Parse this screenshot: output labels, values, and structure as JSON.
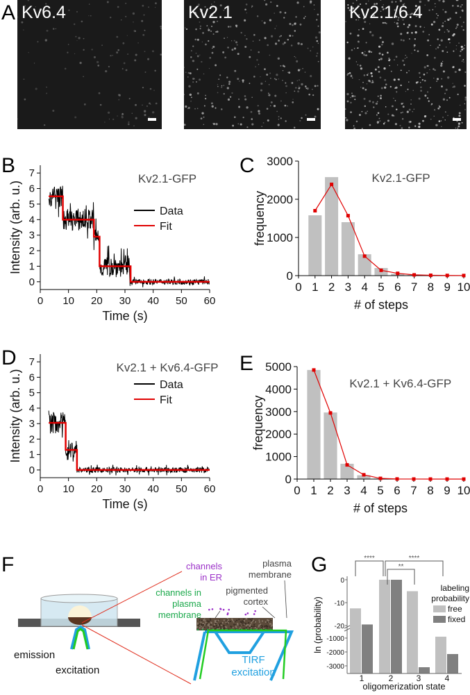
{
  "panel_labels": [
    "A",
    "B",
    "C",
    "D",
    "E",
    "F",
    "G"
  ],
  "panel_a": {
    "images": [
      "Kv6.4",
      "Kv2.1",
      "Kv2.1/6.4"
    ],
    "brightness": [
      0.25,
      0.6,
      0.8
    ]
  },
  "colors": {
    "data": "#000000",
    "fit": "#e00000",
    "bar": "#c0c0c0",
    "bar_dark": "#808080",
    "er": "#9b30c8",
    "pm": "#1aa84a",
    "tirf": "#20a0e0"
  },
  "chart_data": [
    {
      "id": "B",
      "type": "line",
      "title": "Kv2.1-GFP",
      "xlabel": "Time (s)",
      "ylabel": "Intensity (arb. u.)",
      "xlim": [
        0,
        60
      ],
      "ylim": [
        -0.5,
        7.5
      ],
      "xticks": [
        "0",
        "10",
        "20",
        "30",
        "40",
        "50",
        "60"
      ],
      "yticks": [
        "0",
        "1",
        "2",
        "3",
        "4",
        "5",
        "6",
        "7"
      ],
      "legend": [
        "Data",
        "Fit"
      ],
      "fit_steps": [
        [
          3,
          8,
          5.5
        ],
        [
          8,
          19,
          4
        ],
        [
          19,
          21,
          2.9
        ],
        [
          21,
          32,
          1
        ],
        [
          32,
          60,
          0
        ]
      ]
    },
    {
      "id": "C",
      "type": "bar",
      "title": "Kv2.1-GFP",
      "xlabel": "# of steps",
      "ylabel": "frequency",
      "ylim": [
        0,
        3000
      ],
      "xticks": [
        "0",
        "1",
        "2",
        "3",
        "4",
        "5",
        "6",
        "7",
        "8",
        "9",
        "10"
      ],
      "yticks": [
        "0",
        "1000",
        "2000",
        "3000"
      ],
      "categories": [
        1,
        2,
        3,
        4,
        5,
        6,
        7,
        8,
        9,
        10
      ],
      "values": [
        1580,
        2580,
        1400,
        560,
        200,
        50,
        20,
        10,
        5,
        0
      ],
      "fit": [
        1700,
        2390,
        1570,
        510,
        140,
        60,
        20,
        10,
        5,
        3
      ]
    },
    {
      "id": "D",
      "type": "line",
      "title": "Kv2.1 + Kv6.4-GFP",
      "xlabel": "Time (s)",
      "ylabel": "Intensity (arb. u.)",
      "xlim": [
        0,
        60
      ],
      "ylim": [
        -0.5,
        7.5
      ],
      "xticks": [
        "0",
        "10",
        "20",
        "30",
        "40",
        "50",
        "60"
      ],
      "yticks": [
        "0",
        "1",
        "2",
        "3",
        "4",
        "5",
        "6",
        "7"
      ],
      "legend": [
        "Data",
        "Fit"
      ],
      "fit_steps": [
        [
          3,
          9,
          3.05
        ],
        [
          9,
          13,
          1.3
        ],
        [
          13,
          60,
          0
        ]
      ]
    },
    {
      "id": "E",
      "type": "bar",
      "title": "Kv2.1 + Kv6.4-GFP",
      "xlabel": "# of steps",
      "ylabel": "frequency",
      "ylim": [
        0,
        5000
      ],
      "xticks": [
        "0",
        "1",
        "2",
        "3",
        "4",
        "5",
        "6",
        "7",
        "8",
        "9",
        "10"
      ],
      "yticks": [
        "0",
        "1000",
        "2000",
        "3000",
        "4000",
        "5000"
      ],
      "categories": [
        1,
        2,
        3,
        4,
        5,
        6,
        7,
        8,
        9,
        10
      ],
      "values": [
        4850,
        2960,
        680,
        170,
        30,
        10,
        0,
        0,
        0,
        0
      ],
      "fit": [
        4850,
        2940,
        630,
        190,
        30,
        5,
        2,
        1,
        1,
        0
      ]
    },
    {
      "id": "G",
      "type": "bar",
      "xlabel": "oligomerization state",
      "ylabel": "ln (probability)",
      "yticks": [
        "0",
        "-10",
        "-20",
        "-1000",
        "-2000",
        "-3000"
      ],
      "categories": [
        "1",
        "2",
        "3",
        "4"
      ],
      "legend_title": [
        "labeling",
        "probability"
      ],
      "series": [
        {
          "name": "free",
          "values": [
            -12.5,
            0,
            -5,
            -900
          ]
        },
        {
          "name": "fixed",
          "values": [
            -21.5,
            0,
            -3100,
            -2150
          ]
        }
      ],
      "significance": [
        {
          "from": "1",
          "to": "2",
          "label": "****"
        },
        {
          "from": "2",
          "to": "3",
          "label": "**"
        },
        {
          "from": "2",
          "to": "4",
          "label": "****"
        }
      ]
    }
  ],
  "panel_f": {
    "labels": {
      "emission": "emission",
      "excitation": "excitation",
      "er1": "channels",
      "er2": "in ER",
      "pm1": "channels in",
      "pm2": "plasma",
      "pm3": "membrane",
      "pmem1": "plasma",
      "pmem2": "membrane",
      "cortex1": "pigmented",
      "cortex2": "cortex",
      "tirf1": "TIRF",
      "tirf2": "excitation"
    }
  }
}
